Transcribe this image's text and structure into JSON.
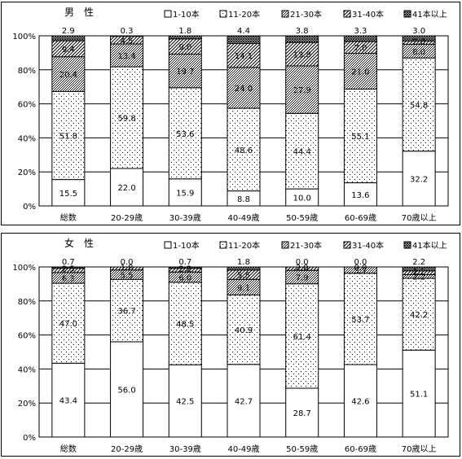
{
  "legend": [
    "1-10本",
    "11-20本",
    "21-30本",
    "31-40本",
    "41本以上"
  ],
  "chart_data": [
    {
      "type": "bar",
      "stacked": "percent",
      "title": "男　性",
      "categories": [
        "総数",
        "20-29歳",
        "30-39歳",
        "40-49歳",
        "50-59歳",
        "60-69歳",
        "70歳以上"
      ],
      "y_ticks": [
        "0%",
        "20%",
        "40%",
        "60%",
        "80%",
        "100%"
      ],
      "ylim": [
        0,
        100
      ],
      "grid": true,
      "legend_position": "top-right",
      "series": [
        {
          "name": "1-10本",
          "values": [
            15.5,
            22.0,
            15.9,
            8.8,
            10.0,
            13.6,
            32.2
          ],
          "labels": [
            "15.5",
            "22.0",
            "15.9",
            "8.8",
            "10.0",
            "13.6",
            "32.2"
          ]
        },
        {
          "name": "11-20本",
          "values": [
            51.8,
            59.8,
            53.6,
            48.6,
            44.4,
            55.1,
            54.8
          ],
          "labels": [
            "51.8",
            "59.8",
            "53.6",
            "48.6",
            "44.4",
            "55.1",
            "54.8"
          ]
        },
        {
          "name": "21-30本",
          "values": [
            20.4,
            13.4,
            19.7,
            24.0,
            27.9,
            21.0,
            8.0
          ],
          "labels": [
            "20.4",
            "13.4",
            "19.7",
            "24.0",
            "27.9",
            "21.0",
            "8.0"
          ]
        },
        {
          "name": "31-40本",
          "values": [
            9.4,
            4.5,
            9.0,
            14.1,
            13.8,
            7.0,
            2.0
          ],
          "labels": [
            "9.4",
            "4.5",
            "9.0",
            "14.1",
            "13.8",
            "7.0",
            "2.0"
          ]
        },
        {
          "name": "41本以上",
          "values": [
            2.9,
            0.3,
            1.8,
            4.4,
            3.8,
            3.3,
            3.0
          ],
          "labels": [
            "2.9",
            "0.3",
            "1.8",
            "4.4",
            "3.8",
            "3.3",
            "3.0"
          ]
        }
      ]
    },
    {
      "type": "bar",
      "stacked": "percent",
      "title": "女　性",
      "categories": [
        "総数",
        "20-29歳",
        "30-39歳",
        "40-49歳",
        "50-59歳",
        "60-69歳",
        "70歳以上"
      ],
      "y_ticks": [
        "0%",
        "20%",
        "40%",
        "60%",
        "80%",
        "100%"
      ],
      "ylim": [
        0,
        100
      ],
      "grid": true,
      "legend_position": "top-right",
      "series": [
        {
          "name": "1-10本",
          "values": [
            43.4,
            56.0,
            42.5,
            42.7,
            28.7,
            42.6,
            51.1
          ],
          "labels": [
            "43.4",
            "56.0",
            "42.5",
            "42.7",
            "28.7",
            "42.6",
            "51.1"
          ]
        },
        {
          "name": "11-20本",
          "values": [
            47.0,
            36.7,
            48.5,
            40.9,
            61.4,
            53.7,
            42.2
          ],
          "labels": [
            "47.0",
            "36.7",
            "48.5",
            "40.9",
            "61.4",
            "53.7",
            "42.2"
          ]
        },
        {
          "name": "21-30本",
          "values": [
            6.3,
            5.5,
            6.0,
            9.1,
            7.9,
            3.7,
            2.2
          ],
          "labels": [
            "6.3",
            "5.5",
            "6.0",
            "9.1",
            "7.9",
            "3.7",
            "2.2"
          ]
        },
        {
          "name": "31-40本",
          "values": [
            2.5,
            1.8,
            2.2,
            5.5,
            2.0,
            0.0,
            2.2
          ],
          "labels": [
            "2.5",
            "1.8",
            "2.2",
            "5.5",
            "2.0",
            "0.0",
            "2.2"
          ]
        },
        {
          "name": "41本以上",
          "values": [
            0.7,
            0.0,
            0.7,
            1.8,
            0.0,
            0.0,
            2.2
          ],
          "labels": [
            "0.7",
            "0.0",
            "0.7",
            "1.8",
            "0.0",
            "0.0",
            "2.2"
          ]
        }
      ]
    }
  ]
}
